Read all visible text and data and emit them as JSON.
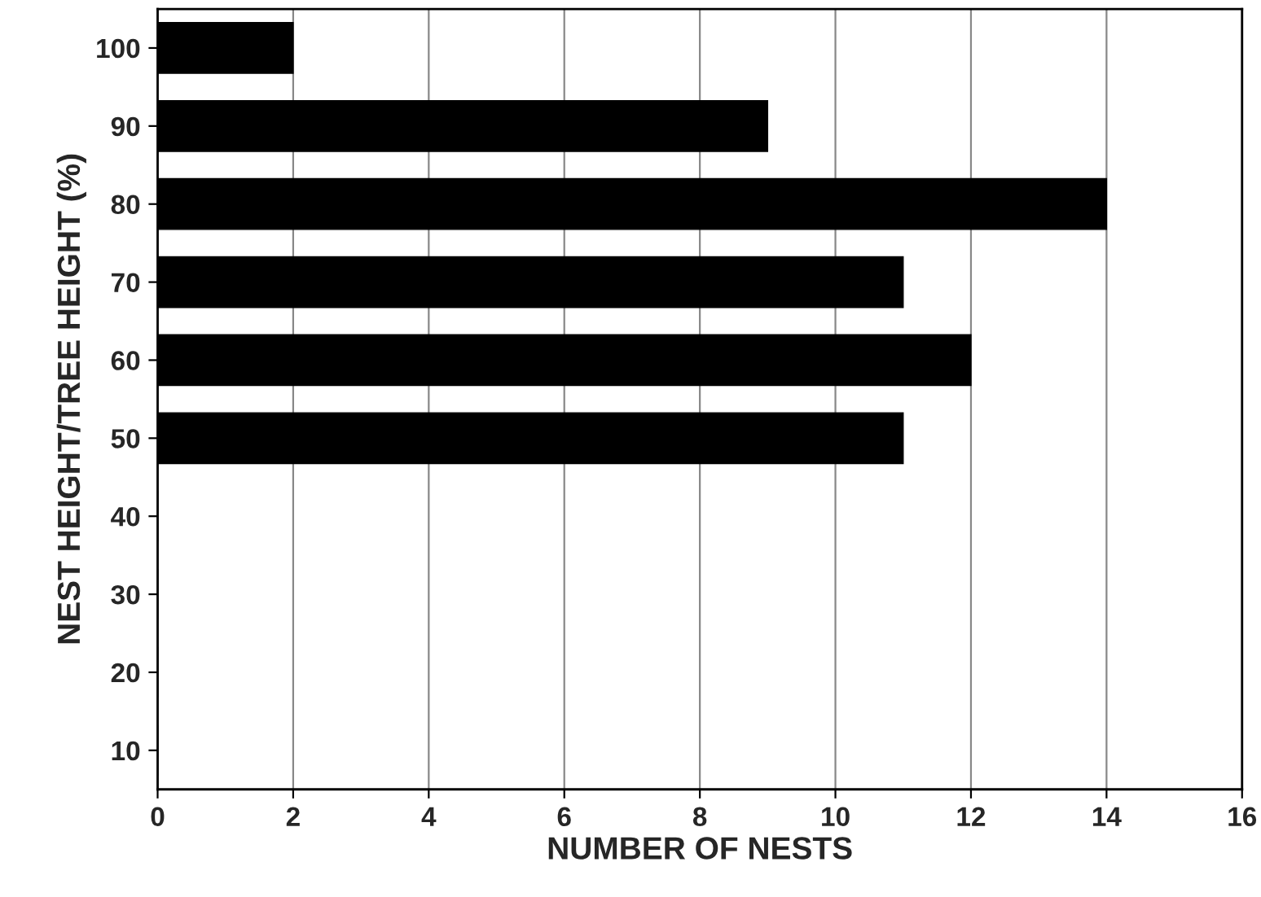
{
  "chart_data": {
    "type": "bar",
    "orientation": "horizontal",
    "xlabel": "NUMBER OF NESTS",
    "ylabel": "NEST HEIGHT/TREE HEIGHT (%)",
    "categories": [
      "100",
      "90",
      "80",
      "70",
      "60",
      "50",
      "40",
      "30",
      "20",
      "10"
    ],
    "values": [
      2,
      9,
      14,
      11,
      12,
      11,
      0,
      0,
      0,
      0
    ],
    "color": "#000000",
    "xlim": [
      0,
      16
    ],
    "xticks": [
      0,
      2,
      4,
      6,
      8,
      10,
      12,
      14,
      16
    ],
    "grid": "x",
    "legend": false
  }
}
